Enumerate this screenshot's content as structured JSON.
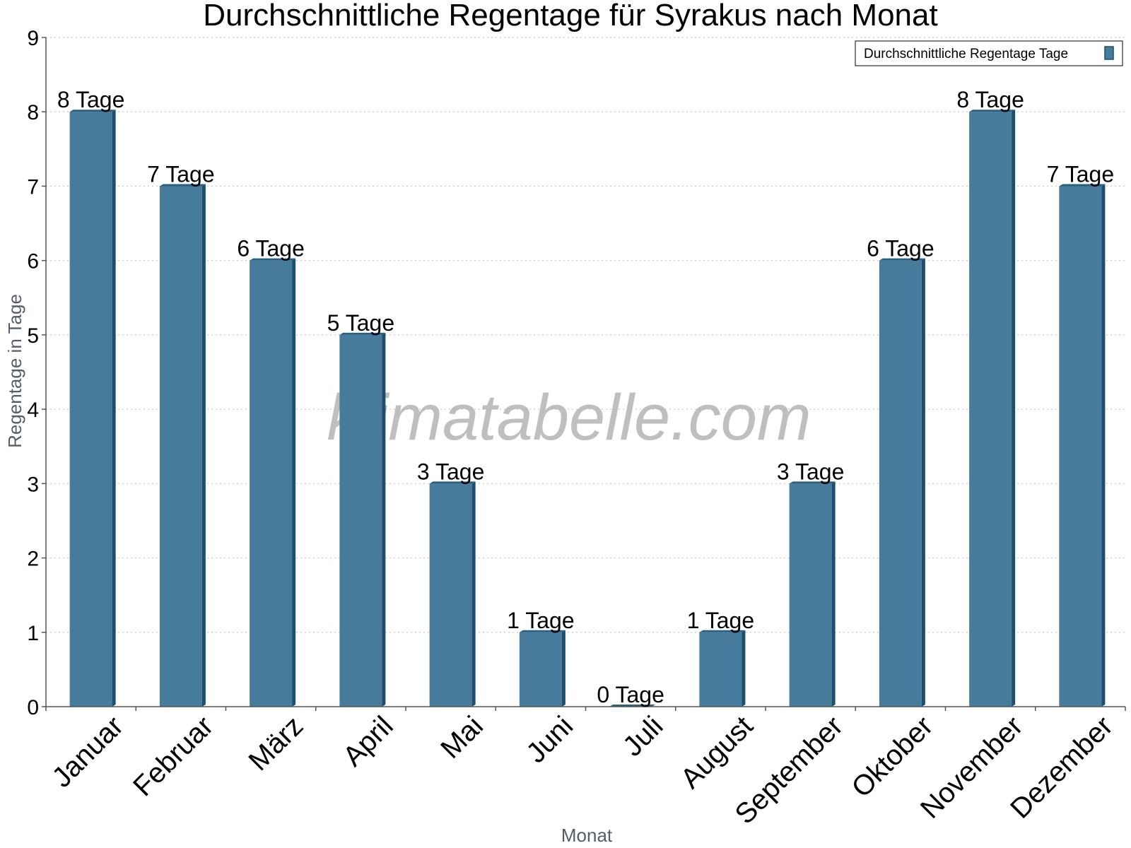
{
  "chart_data": {
    "type": "bar",
    "title": "Durchschnittliche Regentage für Syrakus nach Monat",
    "xlabel": "Monat",
    "ylabel": "Regentage in Tage",
    "ylim": [
      0,
      9
    ],
    "yticks": [
      "0",
      "1",
      "2",
      "3",
      "4",
      "5",
      "6",
      "7",
      "8",
      "9"
    ],
    "categories": [
      "Januar",
      "Februar",
      "März",
      "April",
      "Mai",
      "Juni",
      "Juli",
      "August",
      "September",
      "Oktober",
      "November",
      "Dezember"
    ],
    "series": [
      {
        "name": "Durchschnittliche Regentage Tage",
        "values": [
          8,
          7,
          6,
          5,
          3,
          1,
          0,
          1,
          3,
          6,
          8,
          7
        ],
        "labels": [
          "8 Tage",
          "7 Tage",
          "6 Tage",
          "5 Tage",
          "3 Tage",
          "1 Tage",
          "0 Tage",
          "1 Tage",
          "3 Tage",
          "6 Tage",
          "8 Tage",
          "7 Tage"
        ]
      }
    ],
    "grid": "horizontal-dotted",
    "legend_position": "top-right",
    "colors": {
      "bar": "#467b9c",
      "bar_side": "#1d4e6e",
      "bar_top": "#2b5f82",
      "grid": "#c8c8c8",
      "axis": "#555555"
    }
  },
  "watermark": "klimatabelle.com"
}
